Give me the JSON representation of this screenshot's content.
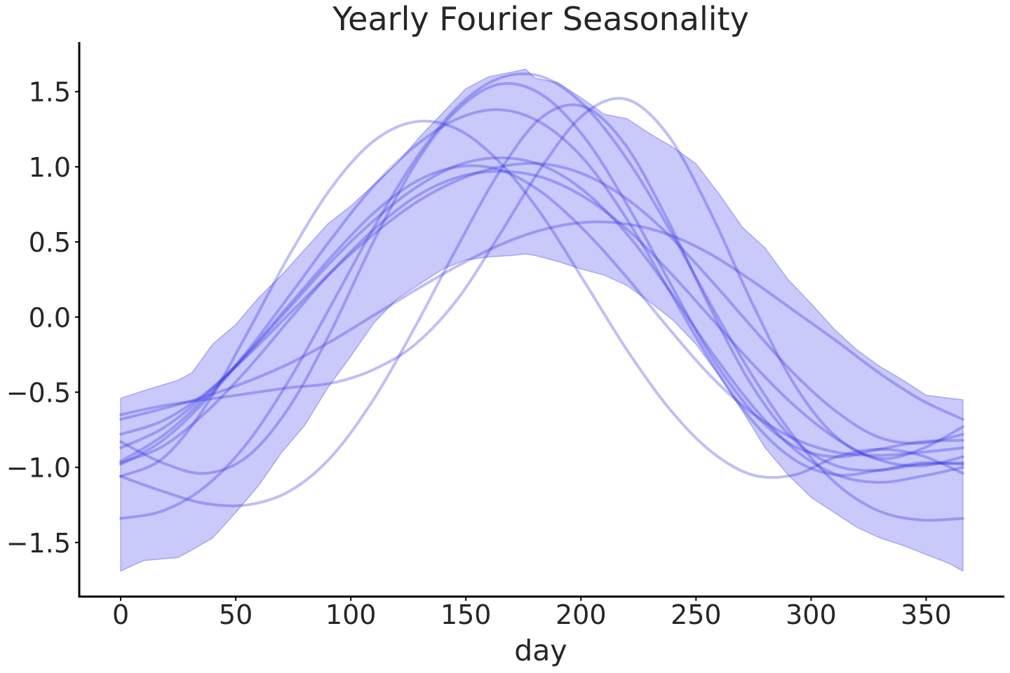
{
  "chart_data": {
    "type": "line",
    "title": "Yearly Fourier Seasonality",
    "xlabel": "day",
    "ylabel": "",
    "xlim": [
      -18,
      384
    ],
    "ylim": [
      -1.86,
      1.83
    ],
    "xticks": [
      0,
      50,
      100,
      150,
      200,
      250,
      300,
      350
    ],
    "xtick_labels": [
      "0",
      "50",
      "100",
      "150",
      "200",
      "250",
      "300",
      "350"
    ],
    "yticks": [
      1.5,
      1.0,
      0.5,
      0.0,
      -0.5,
      -1.0,
      -1.5
    ],
    "ytick_labels": [
      "1.5",
      "1.0",
      "0.5",
      "0.0",
      "−0.5",
      "−1.0",
      "−1.5"
    ],
    "grid": false,
    "colors": {
      "band": "#5a5af0",
      "band_edge": "#4040e0",
      "line": "#2a2ae6",
      "axis": "#000000",
      "text": "#262626"
    },
    "band": {
      "x": [
        0,
        10,
        25,
        31,
        40,
        50,
        60,
        70,
        80,
        90,
        100,
        110,
        120,
        130,
        140,
        150,
        160,
        170,
        176,
        180,
        190,
        200,
        210,
        220,
        230,
        240,
        250,
        260,
        270,
        280,
        290,
        300,
        310,
        320,
        330,
        340,
        350,
        360,
        366
      ],
      "upper": [
        -0.54,
        -0.49,
        -0.42,
        -0.37,
        -0.18,
        -0.05,
        0.13,
        0.28,
        0.45,
        0.62,
        0.74,
        0.88,
        1.02,
        1.2,
        1.36,
        1.52,
        1.6,
        1.63,
        1.65,
        1.59,
        1.56,
        1.46,
        1.35,
        1.32,
        1.22,
        1.13,
        1.02,
        0.82,
        0.6,
        0.46,
        0.25,
        0.09,
        -0.08,
        -0.22,
        -0.33,
        -0.42,
        -0.52,
        -0.54,
        -0.55
      ],
      "lower": [
        -1.69,
        -1.62,
        -1.6,
        -1.55,
        -1.47,
        -1.3,
        -1.12,
        -0.9,
        -0.72,
        -0.47,
        -0.26,
        -0.04,
        0.12,
        0.22,
        0.32,
        0.38,
        0.4,
        0.41,
        0.42,
        0.41,
        0.37,
        0.32,
        0.28,
        0.21,
        0.1,
        -0.02,
        -0.18,
        -0.39,
        -0.62,
        -0.87,
        -1.05,
        -1.2,
        -1.3,
        -1.4,
        -1.47,
        -1.52,
        -1.58,
        -1.64,
        -1.69
      ]
    },
    "series": [
      {
        "values": [
          -0.97,
          -0.86,
          -0.64,
          -0.35,
          -0.02,
          0.3,
          0.58,
          0.8,
          0.93,
          0.97,
          0.93,
          0.8,
          0.59,
          0.31,
          0.0,
          -0.31,
          -0.59,
          -0.81,
          -0.95,
          -0.99,
          -0.93
        ]
      },
      {
        "values": [
          -1.06,
          -0.94,
          -0.6,
          -0.11,
          0.41,
          0.86,
          1.17,
          1.3,
          1.25,
          1.03,
          0.68,
          0.24,
          -0.21,
          -0.6,
          -0.89,
          -1.05,
          -1.05,
          -0.93,
          -0.88,
          -0.92,
          -1.04
        ]
      },
      {
        "values": [
          -0.83,
          -0.97,
          -1.04,
          -0.93,
          -0.6,
          -0.09,
          0.5,
          1.02,
          1.38,
          1.55,
          1.48,
          1.2,
          0.76,
          0.25,
          -0.25,
          -0.63,
          -0.86,
          -0.93,
          -0.88,
          -0.83,
          -0.82
        ]
      },
      {
        "values": [
          -0.78,
          -0.69,
          -0.51,
          -0.26,
          0.02,
          0.3,
          0.55,
          0.76,
          0.91,
          1.0,
          1.02,
          0.95,
          0.79,
          0.55,
          0.25,
          -0.07,
          -0.38,
          -0.63,
          -0.8,
          -0.84,
          -0.78
        ]
      },
      {
        "values": [
          -0.65,
          -0.59,
          -0.55,
          -0.51,
          -0.47,
          -0.44,
          -0.35,
          -0.18,
          0.12,
          0.55,
          1.0,
          1.35,
          1.45,
          1.21,
          0.7,
          0.09,
          -0.45,
          -0.8,
          -0.94,
          -0.88,
          -0.73
        ]
      },
      {
        "values": [
          -0.96,
          -0.79,
          -0.54,
          -0.25,
          0.06,
          0.37,
          0.64,
          0.86,
          1.01,
          1.06,
          1.01,
          0.84,
          0.56,
          0.19,
          -0.22,
          -0.59,
          -0.88,
          -1.05,
          -1.1,
          -1.06,
          -1.0
        ]
      },
      {
        "values": [
          -0.98,
          -0.82,
          -0.56,
          -0.23,
          0.14,
          0.52,
          0.87,
          1.14,
          1.32,
          1.38,
          1.29,
          1.05,
          0.66,
          0.19,
          -0.29,
          -0.69,
          -0.95,
          -1.05,
          -1.02,
          -0.97,
          -0.98
        ]
      },
      {
        "values": [
          -1.06,
          -1.16,
          -1.24,
          -1.25,
          -1.16,
          -0.93,
          -0.55,
          -0.06,
          0.47,
          0.97,
          1.33,
          1.4,
          1.14,
          0.64,
          0.06,
          -0.46,
          -0.82,
          -0.99,
          -1.02,
          -0.98,
          -0.97
        ]
      },
      {
        "values": [
          -0.68,
          -0.61,
          -0.53,
          -0.43,
          -0.31,
          -0.16,
          0.01,
          0.18,
          0.34,
          0.48,
          0.58,
          0.63,
          0.62,
          0.55,
          0.42,
          0.24,
          0.04,
          -0.16,
          -0.37,
          -0.55,
          -0.68
        ]
      },
      {
        "values": [
          -1.34,
          -1.29,
          -1.13,
          -0.84,
          -0.42,
          0.08,
          0.59,
          1.05,
          1.4,
          1.59,
          1.6,
          1.41,
          1.06,
          0.6,
          0.09,
          -0.39,
          -0.8,
          -1.11,
          -1.29,
          -1.35,
          -1.34
        ]
      },
      {
        "values": [
          -0.87,
          -0.74,
          -0.52,
          -0.24,
          0.08,
          0.4,
          0.69,
          0.9,
          1.0,
          0.98,
          0.83,
          0.58,
          0.27,
          -0.07,
          -0.39,
          -0.64,
          -0.81,
          -0.9,
          -0.92,
          -0.9,
          -0.87
        ]
      }
    ]
  }
}
